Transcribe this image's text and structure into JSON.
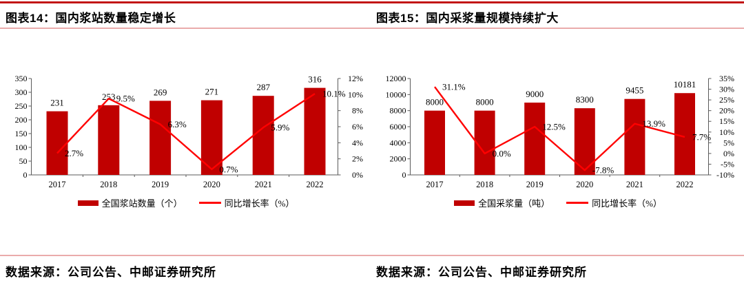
{
  "page": {
    "figure14_title": "图表14：国内浆站数量稳定增长",
    "figure15_title": "图表15：国内采浆量规模持续扩大",
    "source_left": "数据来源：公司公告、中邮证券研究所",
    "source_right": "数据来源：公司公告、中邮证券研究所"
  },
  "colors": {
    "bar": "#c00000",
    "line": "#ff0000",
    "rule_dark": "#c21212",
    "rule_light": "#eaabab",
    "axis": "#595959"
  },
  "chart_data": [
    {
      "type": "bar+line",
      "title": "图表14：国内浆站数量稳定增长",
      "categories": [
        "2017",
        "2018",
        "2019",
        "2020",
        "2021",
        "2022"
      ],
      "series": [
        {
          "name": "全国浆站数量（个）",
          "type": "bar",
          "axis": "left",
          "values": [
            231,
            253,
            269,
            271,
            287,
            316
          ],
          "point_labels": [
            "231",
            "253",
            "269",
            "271",
            "287",
            "316"
          ]
        },
        {
          "name": "同比增长率（%）",
          "type": "line",
          "axis": "right",
          "values": [
            2.7,
            9.5,
            6.3,
            0.7,
            5.9,
            10.1
          ],
          "point_labels": [
            "2.7%",
            "9.5%",
            "6.3%",
            "0.7%",
            "5.9%",
            "10.1%"
          ]
        }
      ],
      "left_axis": {
        "min": 0,
        "max": 350,
        "tick_values": [
          0,
          50,
          100,
          150,
          200,
          250,
          300,
          350
        ],
        "tick_labels": [
          "0",
          "50",
          "100",
          "150",
          "200",
          "250",
          "300",
          "350"
        ]
      },
      "right_axis": {
        "min": 0,
        "max": 12,
        "tick_values": [
          0,
          2,
          4,
          6,
          8,
          10,
          12
        ],
        "tick_labels": [
          "0%",
          "2%",
          "4%",
          "6%",
          "8%",
          "10%",
          "12%"
        ]
      },
      "legend": [
        {
          "swatch": "bar",
          "label": "全国浆站数量（个）"
        },
        {
          "swatch": "line",
          "label": "同比增长率（%）"
        }
      ],
      "grid": false,
      "legend_position": "bottom"
    },
    {
      "type": "bar+line",
      "title": "图表15：国内采浆量规模持续扩大",
      "categories": [
        "2017",
        "2018",
        "2019",
        "2020",
        "2021",
        "2022"
      ],
      "series": [
        {
          "name": "全国采浆量（吨）",
          "type": "bar",
          "axis": "left",
          "values": [
            8000,
            8000,
            9000,
            8300,
            9455,
            10181
          ],
          "point_labels": [
            "8000",
            "8000",
            "9000",
            "8300",
            "9455",
            "10181"
          ]
        },
        {
          "name": "同比增长率（%）",
          "type": "line",
          "axis": "right",
          "values": [
            31.1,
            0.0,
            12.5,
            -7.8,
            13.9,
            7.7
          ],
          "point_labels": [
            "31.1%",
            "0.0%",
            "12.5%",
            "-7.8%",
            "13.9%",
            "7.7%"
          ]
        }
      ],
      "left_axis": {
        "min": 0,
        "max": 12000,
        "tick_values": [
          0,
          2000,
          4000,
          6000,
          8000,
          10000,
          12000
        ],
        "tick_labels": [
          "0",
          "2000",
          "4000",
          "6000",
          "8000",
          "10000",
          "12000"
        ]
      },
      "right_axis": {
        "min": -10,
        "max": 35,
        "tick_values": [
          -10,
          -5,
          0,
          5,
          10,
          15,
          20,
          25,
          30,
          35
        ],
        "tick_labels": [
          "-10%",
          "-5%",
          "0%",
          "5%",
          "10%",
          "15%",
          "20%",
          "25%",
          "30%",
          "35%"
        ]
      },
      "legend": [
        {
          "swatch": "bar",
          "label": "全国采浆量（吨）"
        },
        {
          "swatch": "line",
          "label": "同比增长率（%）"
        }
      ],
      "grid": false,
      "legend_position": "bottom"
    }
  ]
}
